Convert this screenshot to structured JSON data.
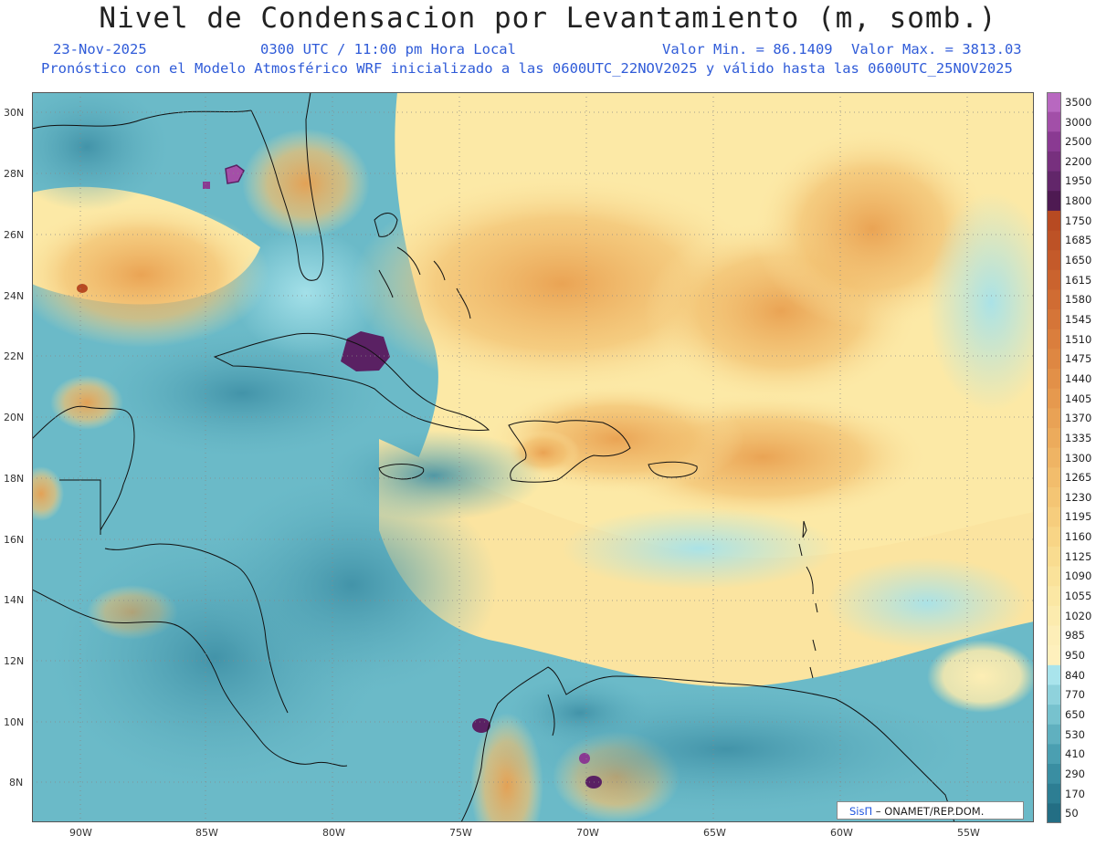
{
  "title": "Nivel de Condensacion por Levantamiento (m, somb.)",
  "date": "23-Nov-2025",
  "time": "0300 UTC / 11:00 pm Hora Local",
  "min_label": "Valor Min. = 86.1409",
  "max_label": "Valor Max. = 3813.03",
  "forecast_note": "Pronóstico con el Modelo Atmosférico WRF inicializado a las 0600UTC_22NOV2025 y válido hasta las  0600UTC_25NOV2025",
  "credit": {
    "sis": "SisΠ",
    "rest": " – ONAMET/REP.DOM."
  },
  "map": {
    "lon_range": [
      -92.0,
      -51.5
    ],
    "lat_range": [
      6.8,
      30.6
    ],
    "lat_ticks": [
      "30N",
      "28N",
      "26N",
      "24N",
      "22N",
      "20N",
      "18N",
      "16N",
      "14N",
      "12N",
      "10N",
      "8N"
    ],
    "lon_ticks": [
      "90W",
      "85W",
      "80W",
      "75W",
      "70W",
      "65W",
      "60W",
      "55W"
    ]
  },
  "legend": {
    "levels": [
      "3500",
      "3000",
      "2500",
      "2200",
      "1950",
      "1800",
      "1750",
      "1685",
      "1650",
      "1615",
      "1580",
      "1545",
      "1510",
      "1475",
      "1440",
      "1405",
      "1370",
      "1335",
      "1300",
      "1265",
      "1230",
      "1195",
      "1160",
      "1125",
      "1090",
      "1055",
      "1020",
      "985",
      "950",
      "840",
      "770",
      "650",
      "530",
      "410",
      "290",
      "170",
      "50"
    ],
    "colors": [
      "#b868c0",
      "#a24fa8",
      "#8a3a92",
      "#77307e",
      "#62266a",
      "#4e1a52",
      "#b74a22",
      "#bd5226",
      "#c45a2a",
      "#ca632e",
      "#d06c33",
      "#d57538",
      "#da7e3d",
      "#de8742",
      "#e29048",
      "#e6994e",
      "#e9a255",
      "#ecab5c",
      "#efb464",
      "#f2bd6c",
      "#f4c574",
      "#f6cd7d",
      "#f8d586",
      "#f9dc90",
      "#fae29a",
      "#fbe7a4",
      "#fcebae",
      "#fdeeb8",
      "#fef0bd",
      "#a9e4ec",
      "#8fd2dc",
      "#77c2ce",
      "#60b0bf",
      "#4b9fb1",
      "#3a8ea2",
      "#2d7e93",
      "#236e84"
    ]
  }
}
